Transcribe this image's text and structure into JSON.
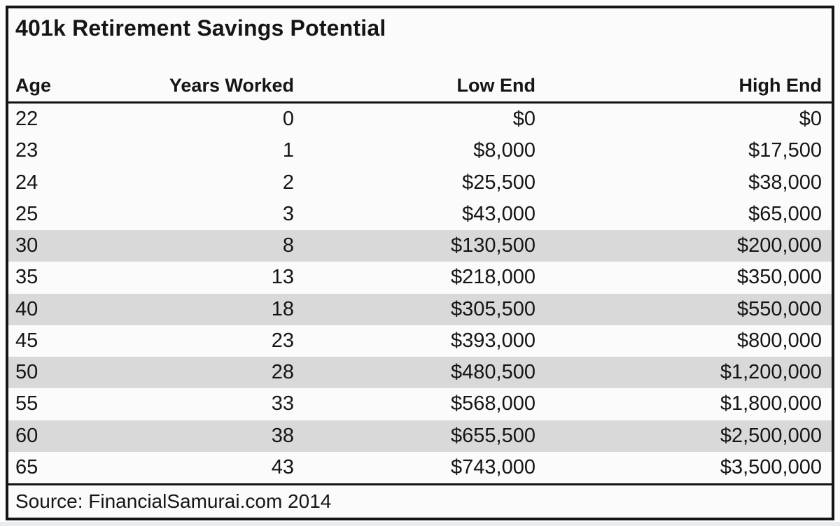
{
  "page": {
    "title": "401k Retirement Savings Potential",
    "source": "Source: FinancialSamurai.com 2014"
  },
  "columns": {
    "age": "Age",
    "years": "Years Worked",
    "low": "Low End",
    "high": "High End"
  },
  "rows": [
    {
      "age": "22",
      "years": "0",
      "low": "$0",
      "high": "$0"
    },
    {
      "age": "23",
      "years": "1",
      "low": "$8,000",
      "high": "$17,500"
    },
    {
      "age": "24",
      "years": "2",
      "low": "$25,500",
      "high": "$38,000"
    },
    {
      "age": "25",
      "years": "3",
      "low": "$43,000",
      "high": "$65,000"
    },
    {
      "age": "30",
      "years": "8",
      "low": "$130,500",
      "high": "$200,000"
    },
    {
      "age": "35",
      "years": "13",
      "low": "$218,000",
      "high": "$350,000"
    },
    {
      "age": "40",
      "years": "18",
      "low": "$305,500",
      "high": "$550,000"
    },
    {
      "age": "45",
      "years": "23",
      "low": "$393,000",
      "high": "$800,000"
    },
    {
      "age": "50",
      "years": "28",
      "low": "$480,500",
      "high": "$1,200,000"
    },
    {
      "age": "55",
      "years": "33",
      "low": "$568,000",
      "high": "$1,800,000"
    },
    {
      "age": "60",
      "years": "38",
      "low": "$655,500",
      "high": "$2,500,000"
    },
    {
      "age": "65",
      "years": "43",
      "low": "$743,000",
      "high": "$3,500,000"
    }
  ],
  "colors": {
    "border": "#141414",
    "shaded_row": "#d9d9d9",
    "row_light": "#fbfbfc",
    "text": "#151515",
    "page_bg": "#fcfcfc"
  },
  "chart_data": {
    "type": "table",
    "title": "401k Retirement Savings Potential",
    "columns": [
      "Age",
      "Years Worked",
      "Low End",
      "High End"
    ],
    "rows": [
      [
        22,
        0,
        "$0",
        "$0"
      ],
      [
        23,
        1,
        "$8,000",
        "$17,500"
      ],
      [
        24,
        2,
        "$25,500",
        "$38,000"
      ],
      [
        25,
        3,
        "$43,000",
        "$65,000"
      ],
      [
        30,
        8,
        "$130,500",
        "$200,000"
      ],
      [
        35,
        13,
        "$218,000",
        "$350,000"
      ],
      [
        40,
        18,
        "$305,500",
        "$550,000"
      ],
      [
        45,
        23,
        "$393,000",
        "$800,000"
      ],
      [
        50,
        28,
        "$480,500",
        "$1,200,000"
      ],
      [
        55,
        33,
        "$568,000",
        "$1,800,000"
      ],
      [
        60,
        38,
        "$655,500",
        "$2,500,000"
      ],
      [
        65,
        43,
        "$743,000",
        "$3,500,000"
      ]
    ],
    "shaded_row_ages": [
      30,
      40,
      50,
      60
    ],
    "source": "Source: FinancialSamurai.com 2014",
    "layout": {
      "grid": "off",
      "column_alignment": [
        "left",
        "right",
        "right",
        "right"
      ]
    }
  }
}
